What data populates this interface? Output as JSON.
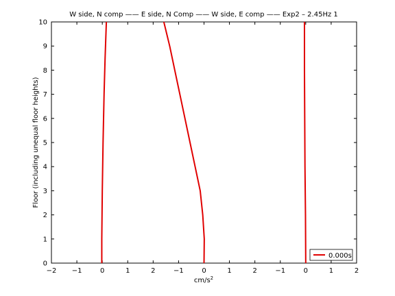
{
  "chart_data": {
    "type": "line",
    "title": "W side, N comp —— E side, N Comp —— W side, E comp —— Exp2 – 2.45Hz 1",
    "xlabel": "cm/s",
    "xlabel_superscript": "2",
    "ylabel": "Floor (including unequal floor heights)",
    "x_tick_labels": [
      "−2",
      "−1",
      "0",
      "1",
      "2",
      "−1",
      "0",
      "1",
      "2",
      "−1",
      "0",
      "1",
      "2"
    ],
    "x_tick_values": [
      -2,
      -1,
      0,
      1,
      2,
      3,
      4,
      5,
      6,
      7,
      8,
      9,
      10
    ],
    "xlim": [
      -2,
      10
    ],
    "y_tick_labels": [
      "0",
      "1",
      "2",
      "3",
      "4",
      "5",
      "6",
      "7",
      "8",
      "9",
      "10"
    ],
    "y_tick_values": [
      0,
      1,
      2,
      3,
      4,
      5,
      6,
      7,
      8,
      9,
      10
    ],
    "ylim": [
      0,
      10
    ],
    "grid": false,
    "legend_position": "bottom-right",
    "line_color": "#e00000",
    "series": [
      {
        "name": "0.000s",
        "segments": [
          {
            "x": [
              -0.02,
              -0.02,
              -0.01,
              0.0,
              0.03,
              0.07,
              0.11,
              0.16
            ],
            "y": [
              0,
              1,
              2,
              3,
              5,
              7,
              8.5,
              10
            ]
          },
          {
            "x": [
              4.0,
              4.01,
              3.95,
              3.85,
              3.65,
              3.45,
              3.25,
              3.05,
              2.85,
              2.65,
              2.42
            ],
            "y": [
              0,
              1,
              2,
              3,
              4,
              5,
              6,
              7,
              8,
              9,
              10
            ]
          },
          {
            "x": [
              8.0,
              7.99,
              7.97,
              7.96,
              7.95,
              7.95
            ],
            "y": [
              0,
              2,
              4,
              6,
              8,
              10
            ]
          }
        ]
      }
    ]
  }
}
